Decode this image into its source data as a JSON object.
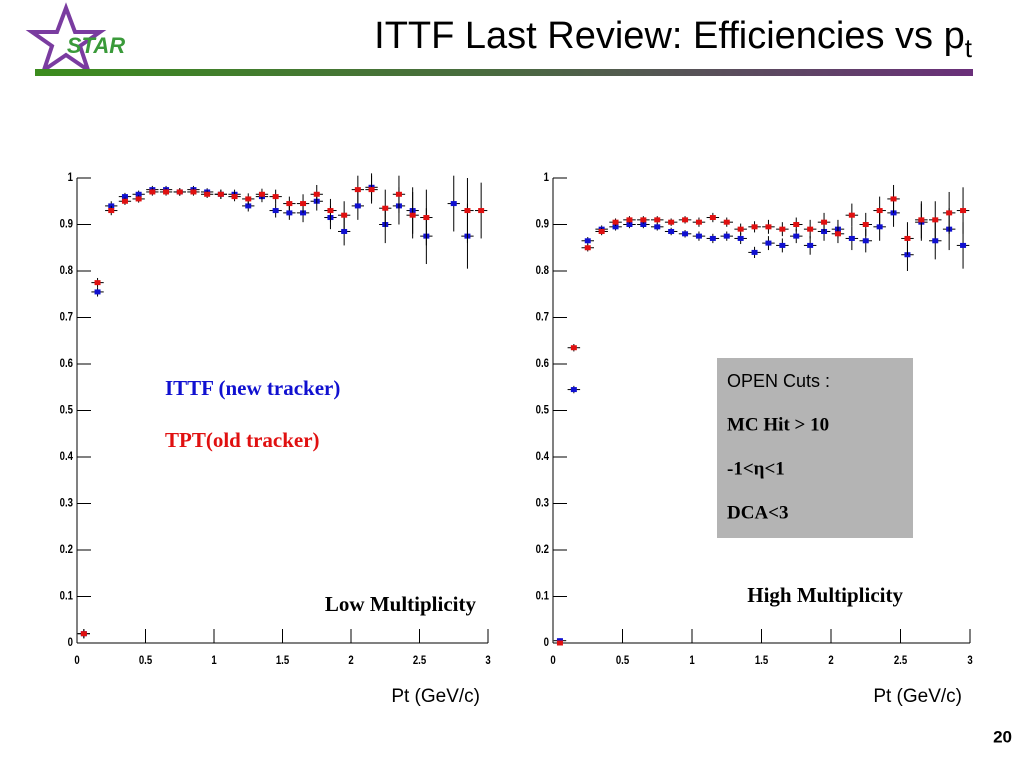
{
  "header": {
    "logo_text": "STAR",
    "title": "ITTF Last Review: Efficiencies vs p",
    "title_subscript": "t",
    "page_number": "20"
  },
  "chart_data": [
    {
      "type": "scatter",
      "xlabel": "Pt (GeV/c)",
      "xlim": [
        0,
        3
      ],
      "xticks": [
        0,
        0.5,
        1,
        1.5,
        2,
        2.5,
        3
      ],
      "ylim": [
        0,
        1
      ],
      "yticks": [
        0,
        0.1,
        0.2,
        0.3,
        0.4,
        0.5,
        0.6,
        0.7,
        0.8,
        0.9,
        1
      ],
      "annotation": "Low Multiplicity",
      "x": [
        0.05,
        0.15,
        0.25,
        0.35,
        0.45,
        0.55,
        0.65,
        0.75,
        0.85,
        0.95,
        1.05,
        1.15,
        1.25,
        1.35,
        1.45,
        1.55,
        1.65,
        1.75,
        1.85,
        1.95,
        2.05,
        2.15,
        2.25,
        2.35,
        2.45,
        2.55,
        2.65,
        2.75,
        2.85,
        2.95
      ],
      "series": [
        {
          "name": "ITTF (new tracker)",
          "color": "#1010d0",
          "values": [
            0.02,
            0.755,
            0.94,
            0.96,
            0.965,
            0.975,
            0.975,
            0.97,
            0.975,
            0.97,
            0.965,
            0.965,
            0.94,
            0.96,
            0.93,
            0.925,
            0.925,
            0.95,
            0.915,
            0.885,
            0.94,
            0.98,
            0.9,
            0.94,
            0.93,
            0.875,
            null,
            0.945,
            0.875,
            null
          ],
          "errors": [
            0.01,
            0.01,
            0.01,
            0.008,
            0.008,
            0.008,
            0.008,
            0.008,
            0.008,
            0.008,
            0.01,
            0.01,
            0.012,
            0.012,
            0.015,
            0.015,
            0.02,
            0.02,
            0.025,
            0.03,
            0.03,
            0.03,
            0.04,
            0.04,
            0.05,
            0.06,
            null,
            0.06,
            0.07,
            null
          ]
        },
        {
          "name": "TPT(old tracker)",
          "color": "#e01010",
          "values": [
            0.02,
            0.775,
            0.93,
            0.95,
            0.955,
            0.97,
            0.97,
            0.97,
            0.97,
            0.965,
            0.965,
            0.96,
            0.955,
            0.965,
            0.96,
            0.945,
            0.945,
            0.965,
            0.93,
            0.92,
            0.975,
            0.975,
            0.935,
            0.965,
            0.92,
            0.915,
            null,
            null,
            0.93,
            0.93
          ],
          "errors": [
            0.01,
            0.01,
            0.01,
            0.008,
            0.008,
            0.008,
            0.008,
            0.008,
            0.008,
            0.008,
            0.01,
            0.01,
            0.012,
            0.012,
            0.015,
            0.015,
            0.02,
            0.02,
            0.025,
            0.03,
            0.03,
            0.03,
            0.04,
            0.04,
            0.05,
            0.06,
            null,
            null,
            0.07,
            0.06
          ]
        }
      ]
    },
    {
      "type": "scatter",
      "xlabel": "Pt (GeV/c)",
      "xlim": [
        0,
        3
      ],
      "xticks": [
        0,
        0.5,
        1,
        1.5,
        2,
        2.5,
        3
      ],
      "ylim": [
        0,
        1
      ],
      "yticks": [
        0,
        0.1,
        0.2,
        0.3,
        0.4,
        0.5,
        0.6,
        0.7,
        0.8,
        0.9,
        1
      ],
      "annotation": "High Multiplicity",
      "cuts": [
        "OPEN Cuts :",
        "MC Hit > 10",
        "-1<η<1",
        "DCA<3"
      ],
      "x": [
        0.05,
        0.15,
        0.25,
        0.35,
        0.45,
        0.55,
        0.65,
        0.75,
        0.85,
        0.95,
        1.05,
        1.15,
        1.25,
        1.35,
        1.45,
        1.55,
        1.65,
        1.75,
        1.85,
        1.95,
        2.05,
        2.15,
        2.25,
        2.35,
        2.45,
        2.55,
        2.65,
        2.75,
        2.85,
        2.95
      ],
      "series": [
        {
          "color": "#1010d0",
          "values": [
            0.005,
            0.545,
            0.865,
            0.89,
            0.895,
            0.9,
            0.9,
            0.895,
            0.885,
            0.88,
            0.875,
            0.87,
            0.875,
            0.87,
            0.84,
            0.86,
            0.855,
            0.875,
            0.855,
            0.885,
            0.89,
            0.87,
            0.865,
            0.895,
            0.925,
            0.835,
            0.905,
            0.865,
            0.89,
            0.855
          ],
          "errors": [
            0.005,
            0.008,
            0.008,
            0.008,
            0.008,
            0.008,
            0.008,
            0.008,
            0.008,
            0.008,
            0.01,
            0.01,
            0.01,
            0.012,
            0.012,
            0.015,
            0.015,
            0.015,
            0.02,
            0.02,
            0.02,
            0.025,
            0.025,
            0.03,
            0.03,
            0.035,
            0.04,
            0.04,
            0.045,
            0.05
          ]
        },
        {
          "color": "#e01010",
          "values": [
            0.0,
            0.635,
            0.85,
            0.885,
            0.905,
            0.91,
            0.91,
            0.91,
            0.905,
            0.91,
            0.905,
            0.915,
            0.905,
            0.89,
            0.895,
            0.895,
            0.89,
            0.9,
            0.89,
            0.905,
            0.88,
            0.92,
            0.9,
            0.93,
            0.955,
            0.87,
            0.91,
            0.91,
            0.925,
            0.93
          ],
          "errors": [
            0.005,
            0.008,
            0.008,
            0.008,
            0.008,
            0.008,
            0.008,
            0.008,
            0.008,
            0.008,
            0.01,
            0.01,
            0.01,
            0.012,
            0.012,
            0.015,
            0.015,
            0.015,
            0.02,
            0.02,
            0.02,
            0.025,
            0.025,
            0.03,
            0.03,
            0.035,
            0.04,
            0.04,
            0.045,
            0.05
          ]
        }
      ]
    }
  ]
}
